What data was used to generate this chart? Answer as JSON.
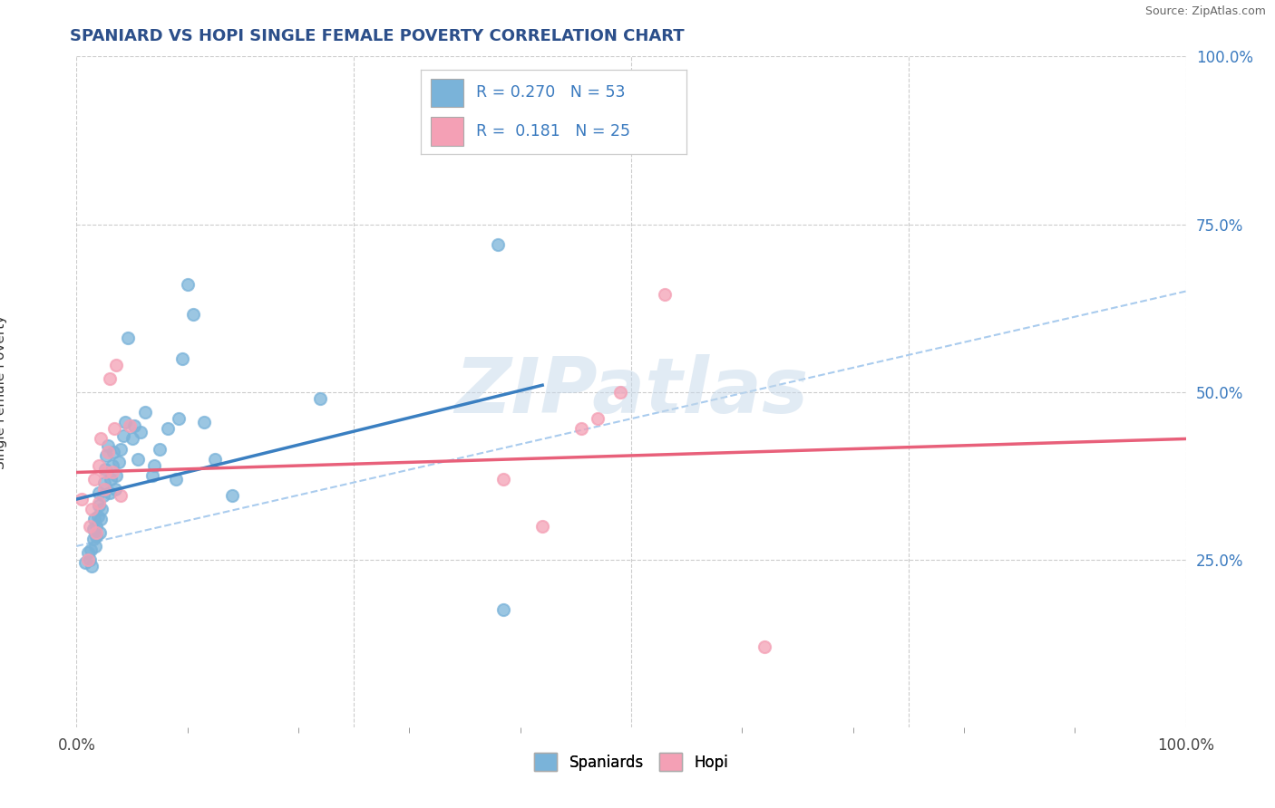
{
  "title": "SPANIARD VS HOPI SINGLE FEMALE POVERTY CORRELATION CHART",
  "source": "Source: ZipAtlas.com",
  "ylabel": "Single Female Poverty",
  "xlim": [
    0.0,
    1.0
  ],
  "ylim": [
    0.0,
    1.0
  ],
  "xtick_vals": [
    0.0,
    0.25,
    0.5,
    0.75,
    1.0
  ],
  "xtick_labels_show": [
    "0.0%",
    "",
    "",
    "",
    "100.0%"
  ],
  "ytick_vals": [
    0.25,
    0.5,
    0.75,
    1.0
  ],
  "ytick_labels": [
    "25.0%",
    "50.0%",
    "75.0%",
    "100.0%"
  ],
  "watermark_text": "ZIPatlas",
  "legend_line1_r": "R = 0.270",
  "legend_line1_n": "N = 53",
  "legend_line2_r": "R =  0.181",
  "legend_line2_n": "N = 25",
  "spaniard_color": "#7ab3d9",
  "hopi_color": "#f4a0b5",
  "spaniard_line_color": "#3a7fc1",
  "hopi_line_color": "#e8607a",
  "dash_line_color": "#aaccee",
  "background_color": "#ffffff",
  "grid_color": "#cccccc",
  "title_color": "#2c4f8a",
  "ytick_color": "#3a7abf",
  "spaniards_label": "Spaniards",
  "hopi_label": "Hopi",
  "spaniards_points": [
    [
      0.008,
      0.245
    ],
    [
      0.01,
      0.26
    ],
    [
      0.012,
      0.25
    ],
    [
      0.013,
      0.265
    ],
    [
      0.014,
      0.24
    ],
    [
      0.015,
      0.28
    ],
    [
      0.015,
      0.295
    ],
    [
      0.016,
      0.31
    ],
    [
      0.017,
      0.27
    ],
    [
      0.018,
      0.285
    ],
    [
      0.018,
      0.3
    ],
    [
      0.019,
      0.315
    ],
    [
      0.02,
      0.33
    ],
    [
      0.02,
      0.35
    ],
    [
      0.021,
      0.29
    ],
    [
      0.022,
      0.31
    ],
    [
      0.023,
      0.325
    ],
    [
      0.024,
      0.345
    ],
    [
      0.025,
      0.365
    ],
    [
      0.026,
      0.385
    ],
    [
      0.027,
      0.405
    ],
    [
      0.028,
      0.42
    ],
    [
      0.03,
      0.35
    ],
    [
      0.031,
      0.37
    ],
    [
      0.032,
      0.39
    ],
    [
      0.033,
      0.41
    ],
    [
      0.035,
      0.355
    ],
    [
      0.036,
      0.375
    ],
    [
      0.038,
      0.395
    ],
    [
      0.04,
      0.415
    ],
    [
      0.042,
      0.435
    ],
    [
      0.044,
      0.455
    ],
    [
      0.046,
      0.58
    ],
    [
      0.05,
      0.43
    ],
    [
      0.052,
      0.45
    ],
    [
      0.055,
      0.4
    ],
    [
      0.058,
      0.44
    ],
    [
      0.062,
      0.47
    ],
    [
      0.068,
      0.375
    ],
    [
      0.07,
      0.39
    ],
    [
      0.075,
      0.415
    ],
    [
      0.082,
      0.445
    ],
    [
      0.09,
      0.37
    ],
    [
      0.092,
      0.46
    ],
    [
      0.095,
      0.55
    ],
    [
      0.1,
      0.66
    ],
    [
      0.105,
      0.615
    ],
    [
      0.115,
      0.455
    ],
    [
      0.125,
      0.4
    ],
    [
      0.14,
      0.345
    ],
    [
      0.22,
      0.49
    ],
    [
      0.38,
      0.72
    ],
    [
      0.385,
      0.175
    ]
  ],
  "hopi_points": [
    [
      0.005,
      0.34
    ],
    [
      0.01,
      0.25
    ],
    [
      0.012,
      0.3
    ],
    [
      0.014,
      0.325
    ],
    [
      0.016,
      0.37
    ],
    [
      0.018,
      0.29
    ],
    [
      0.02,
      0.335
    ],
    [
      0.02,
      0.39
    ],
    [
      0.022,
      0.43
    ],
    [
      0.025,
      0.355
    ],
    [
      0.026,
      0.38
    ],
    [
      0.028,
      0.41
    ],
    [
      0.03,
      0.52
    ],
    [
      0.032,
      0.38
    ],
    [
      0.034,
      0.445
    ],
    [
      0.036,
      0.54
    ],
    [
      0.04,
      0.345
    ],
    [
      0.048,
      0.45
    ],
    [
      0.385,
      0.37
    ],
    [
      0.42,
      0.3
    ],
    [
      0.455,
      0.445
    ],
    [
      0.47,
      0.46
    ],
    [
      0.49,
      0.5
    ],
    [
      0.53,
      0.645
    ],
    [
      0.62,
      0.12
    ]
  ],
  "spaniard_trend_x": [
    0.0,
    0.42
  ],
  "spaniard_trend_y": [
    0.34,
    0.51
  ],
  "hopi_trend_x": [
    0.0,
    1.0
  ],
  "hopi_trend_y": [
    0.38,
    0.43
  ],
  "dash_trend_x": [
    0.0,
    1.0
  ],
  "dash_trend_y": [
    0.27,
    0.65
  ]
}
